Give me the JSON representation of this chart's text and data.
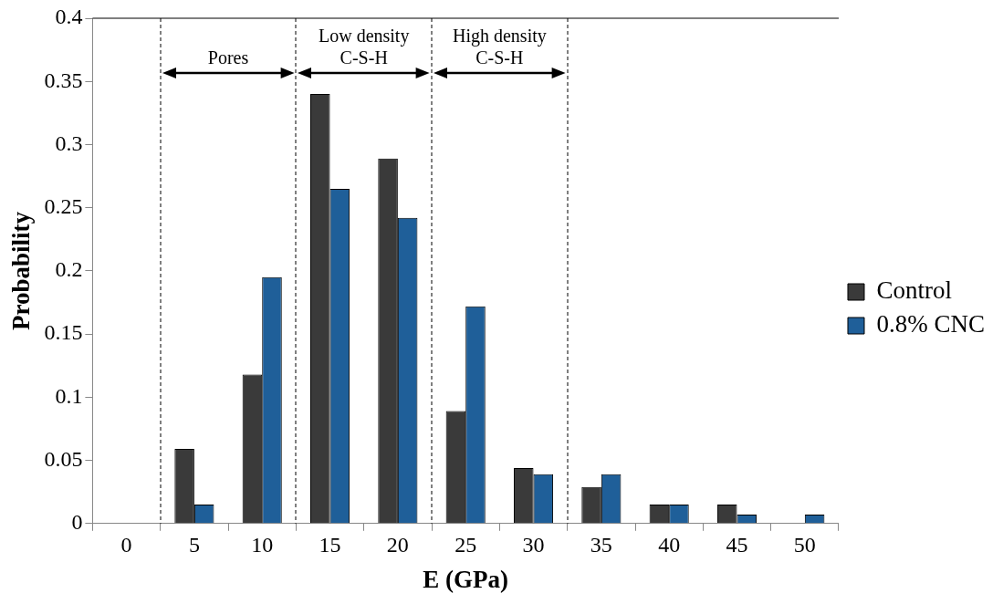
{
  "chart_data": {
    "type": "bar",
    "xlabel": "E (GPa)",
    "ylabel": "Probability",
    "categories": [
      "0",
      "5",
      "10",
      "15",
      "20",
      "25",
      "30",
      "35",
      "40",
      "45",
      "50"
    ],
    "series": [
      {
        "name": "Control",
        "color": "#3a3a3a",
        "values": [
          0,
          0.059,
          0.118,
          0.34,
          0.289,
          0.089,
          0.044,
          0.029,
          0.015,
          0.015,
          0
        ]
      },
      {
        "name": "0.8% CNC",
        "color": "#1f5f99",
        "values": [
          0,
          0.015,
          0.195,
          0.265,
          0.242,
          0.172,
          0.039,
          0.039,
          0.015,
          0.007,
          0.007
        ]
      }
    ],
    "ylim": [
      0,
      0.4
    ],
    "yticks": [
      0,
      0.05,
      0.1,
      0.15,
      0.2,
      0.25,
      0.3,
      0.35,
      0.4
    ],
    "annotations": [
      "Pores",
      "Low density\nC-S-H",
      "High density\nC-S-H"
    ],
    "grid": false,
    "legend": "right"
  }
}
